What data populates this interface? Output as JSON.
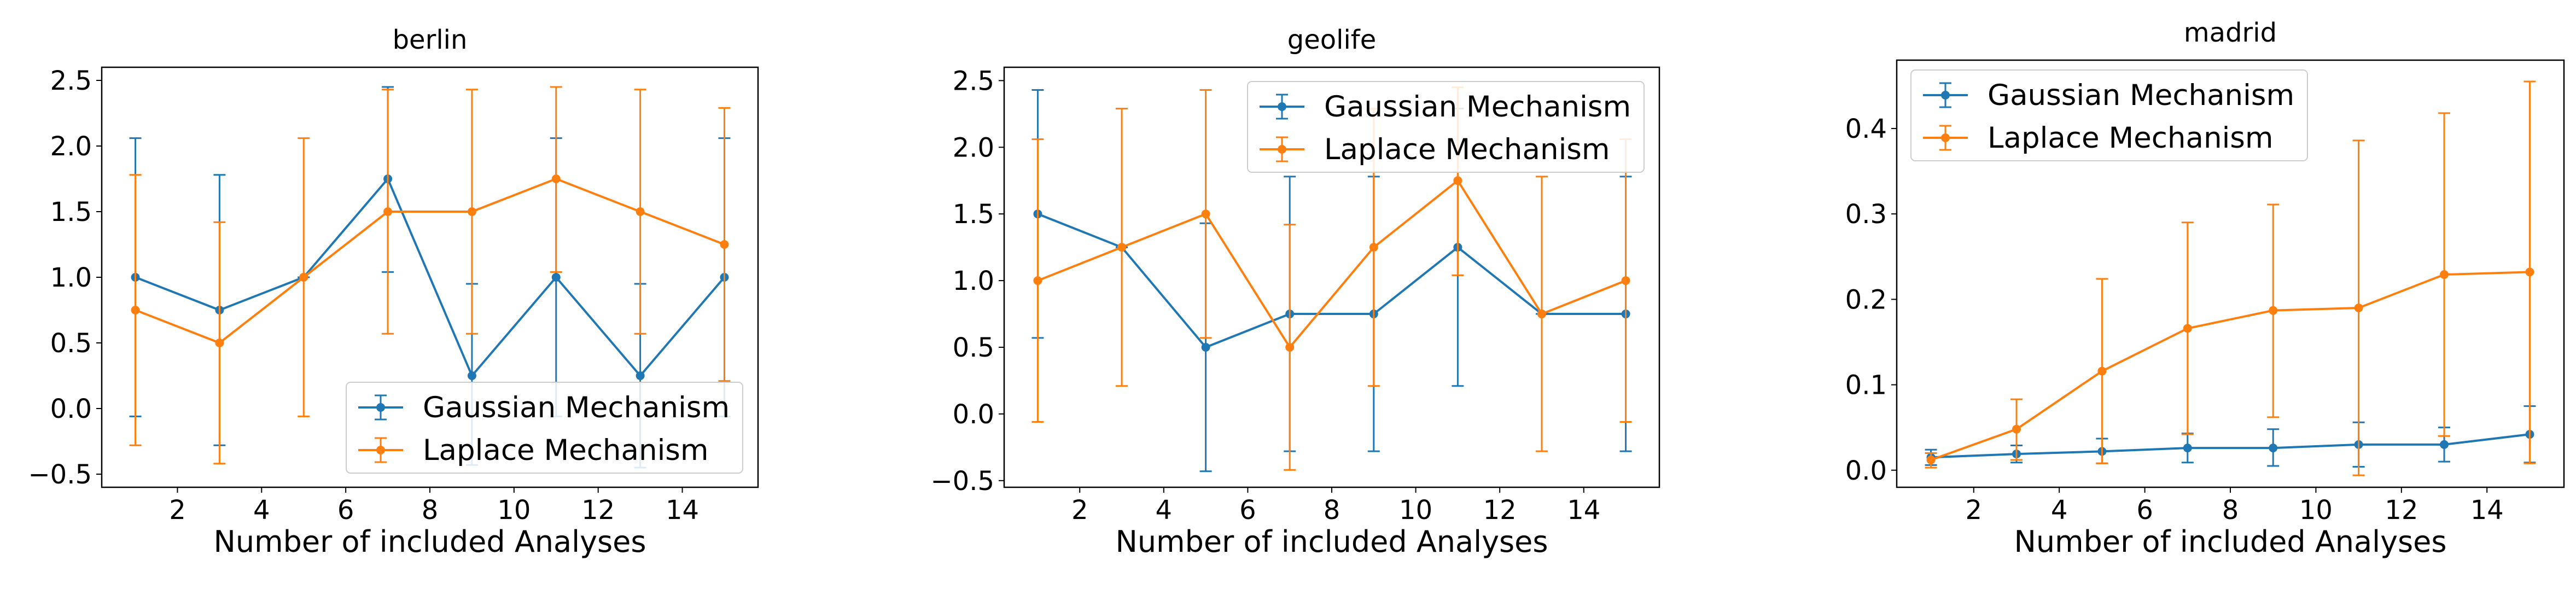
{
  "colors": {
    "gaussian": "#1f77b4",
    "laplace": "#ff7f0e",
    "axis": "#000000"
  },
  "chart_data": [
    {
      "type": "line",
      "title": "berlin",
      "xlabel": "Number of included Analyses",
      "ylabel": "",
      "xlim": [
        0.2,
        15.8
      ],
      "ylim": [
        -0.6,
        2.6
      ],
      "xticks": [
        2,
        4,
        6,
        8,
        10,
        12,
        14
      ],
      "yticks": [
        -0.5,
        0.0,
        0.5,
        1.0,
        1.5,
        2.0,
        2.5
      ],
      "ytick_labels": [
        "−0.5",
        "0.0",
        "0.5",
        "1.0",
        "1.5",
        "2.0",
        "2.5"
      ],
      "legend_position": "lower-right",
      "x": [
        1,
        3,
        5,
        7,
        9,
        11,
        13,
        15
      ],
      "series": [
        {
          "name": "Gaussian Mechanism",
          "color": "#1f77b4",
          "values": [
            1.0,
            0.75,
            1.0,
            1.75,
            0.25,
            1.0,
            0.25,
            1.0
          ],
          "err_low": [
            -0.06,
            -0.28,
            1.0,
            1.04,
            -0.43,
            -0.06,
            -0.45,
            -0.06
          ],
          "err_high": [
            2.06,
            1.78,
            1.0,
            2.45,
            0.95,
            2.06,
            0.95,
            2.06
          ]
        },
        {
          "name": "Laplace Mechanism",
          "color": "#ff7f0e",
          "values": [
            0.75,
            0.5,
            1.0,
            1.5,
            1.5,
            1.75,
            1.5,
            1.25
          ],
          "err_low": [
            -0.28,
            -0.42,
            -0.06,
            0.57,
            0.57,
            1.04,
            0.57,
            0.21
          ],
          "err_high": [
            1.78,
            1.42,
            2.06,
            2.43,
            2.43,
            2.45,
            2.43,
            2.29
          ]
        }
      ]
    },
    {
      "type": "line",
      "title": "geolife",
      "xlabel": "Number of included Analyses",
      "ylabel": "",
      "xlim": [
        0.2,
        15.8
      ],
      "ylim": [
        -0.55,
        2.6
      ],
      "xticks": [
        2,
        4,
        6,
        8,
        10,
        12,
        14
      ],
      "yticks": [
        -0.5,
        0.0,
        0.5,
        1.0,
        1.5,
        2.0,
        2.5
      ],
      "ytick_labels": [
        "−0.5",
        "0.0",
        "0.5",
        "1.0",
        "1.5",
        "2.0",
        "2.5"
      ],
      "legend_position": "upper-right",
      "x": [
        1,
        3,
        5,
        7,
        9,
        11,
        13,
        15
      ],
      "series": [
        {
          "name": "Gaussian Mechanism",
          "color": "#1f77b4",
          "values": [
            1.5,
            1.25,
            0.5,
            0.75,
            0.75,
            1.25,
            0.75,
            0.75
          ],
          "err_low": [
            0.57,
            1.25,
            -0.43,
            -0.28,
            -0.28,
            0.21,
            0.75,
            -0.28
          ],
          "err_high": [
            2.43,
            1.25,
            1.43,
            1.78,
            1.78,
            2.29,
            0.75,
            1.78
          ]
        },
        {
          "name": "Laplace Mechanism",
          "color": "#ff7f0e",
          "values": [
            1.0,
            1.25,
            1.5,
            0.5,
            1.25,
            1.75,
            0.75,
            1.0
          ],
          "err_low": [
            -0.06,
            0.21,
            0.57,
            -0.42,
            0.21,
            1.04,
            -0.28,
            -0.06
          ],
          "err_high": [
            2.06,
            2.29,
            2.43,
            1.42,
            2.29,
            2.45,
            1.78,
            2.06
          ]
        }
      ]
    },
    {
      "type": "line",
      "title": "madrid",
      "xlabel": "Number of included Analyses",
      "ylabel": "",
      "xlim": [
        0.2,
        15.8
      ],
      "ylim": [
        -0.02,
        0.48
      ],
      "xticks": [
        2,
        4,
        6,
        8,
        10,
        12,
        14
      ],
      "yticks": [
        0.0,
        0.1,
        0.2,
        0.3,
        0.4
      ],
      "ytick_labels": [
        "0.0",
        "0.1",
        "0.2",
        "0.3",
        "0.4"
      ],
      "legend_position": "upper-left",
      "x": [
        1,
        3,
        5,
        7,
        9,
        11,
        13,
        15
      ],
      "series": [
        {
          "name": "Gaussian Mechanism",
          "color": "#1f77b4",
          "values": [
            0.015,
            0.019,
            0.022,
            0.026,
            0.026,
            0.03,
            0.03,
            0.042
          ],
          "err_low": [
            0.006,
            0.009,
            0.008,
            0.009,
            0.005,
            0.004,
            0.01,
            0.009
          ],
          "err_high": [
            0.024,
            0.029,
            0.037,
            0.043,
            0.048,
            0.056,
            0.05,
            0.075
          ]
        },
        {
          "name": "Laplace Mechanism",
          "color": "#ff7f0e",
          "values": [
            0.012,
            0.048,
            0.116,
            0.166,
            0.187,
            0.19,
            0.229,
            0.232
          ],
          "err_low": [
            0.003,
            0.012,
            0.008,
            0.042,
            0.062,
            -0.006,
            0.04,
            0.008
          ],
          "err_high": [
            0.02,
            0.083,
            0.224,
            0.29,
            0.311,
            0.386,
            0.418,
            0.455
          ]
        }
      ]
    }
  ]
}
